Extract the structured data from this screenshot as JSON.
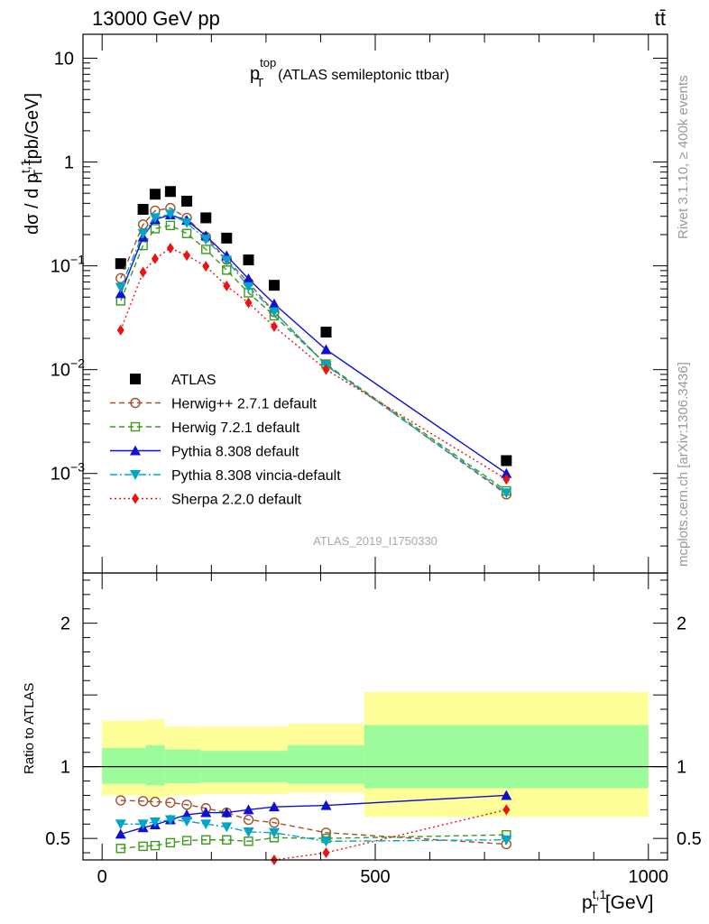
{
  "header": {
    "energy_label": "13000 GeV pp",
    "process_label": "tt̄"
  },
  "side_labels": {
    "rivet": "Rivet 3.1.10, ≥ 400k events",
    "mcplots": "mcplots.cern.ch [arXiv:1306.3436]"
  },
  "plot": {
    "title_main": "p",
    "title_sup": "top",
    "title_sub": "T",
    "title_rest": "(ATLAS semileptonic ttbar)",
    "analysis_id": "ATLAS_2019_I1750330",
    "ylabel_main": "dσ / d p",
    "ylabel_sup": "t,1",
    "ylabel_sub": "T",
    "ylabel_unit": "[pb/GeV]",
    "ratio_ylabel": "Ratio to ATLAS",
    "xlabel_main": "p",
    "xlabel_sup": "t,1",
    "xlabel_sub": "T",
    "xlabel_unit": "[GeV]"
  },
  "chart_data": {
    "type": "scatter",
    "title": "pT top (ATLAS semileptonic ttbar)",
    "xlabel": "pT t,1 [GeV]",
    "ylabel": "dσ / d pT t,1 [pb/GeV]",
    "xlim": [
      -35,
      1035
    ],
    "ylim": [
      0.00011,
      17
    ],
    "yscale": "log",
    "x": [
      34,
      75,
      97,
      125,
      155,
      190,
      228,
      268,
      315,
      410,
      740
    ],
    "y_ticks": [
      {
        "value": 10,
        "base": "10",
        "exp": ""
      },
      {
        "value": 1,
        "base": "1",
        "exp": ""
      },
      {
        "value": 0.1,
        "base": "10",
        "exp": "−1"
      },
      {
        "value": 0.01,
        "base": "10",
        "exp": "−2"
      },
      {
        "value": 0.001,
        "base": "10",
        "exp": "−3"
      }
    ],
    "x_ticks": [
      0,
      500,
      1000
    ],
    "series": [
      {
        "name": "ATLAS",
        "color": "#000000",
        "marker": "square-filled",
        "line": "none",
        "values": [
          0.105,
          0.35,
          0.49,
          0.52,
          0.42,
          0.29,
          0.185,
          0.114,
          0.065,
          0.023,
          0.00133
        ]
      },
      {
        "name": "Herwig++ 2.7.1 default",
        "color": "#a0522d",
        "marker": "circle-open",
        "line": "dashed",
        "values": [
          0.076,
          0.25,
          0.34,
          0.36,
          0.29,
          0.19,
          0.115,
          0.069,
          0.036,
          0.0112,
          0.00063
        ]
      },
      {
        "name": "Herwig 7.2.1 default",
        "color": "#3a9a1a",
        "marker": "square-open",
        "line": "dashed",
        "values": [
          0.046,
          0.157,
          0.228,
          0.245,
          0.205,
          0.144,
          0.091,
          0.055,
          0.033,
          0.0113,
          0.00068
        ]
      },
      {
        "name": "Pythia 8.308 default",
        "color": "#1010d0",
        "marker": "triangle-up",
        "line": "solid",
        "values": [
          0.054,
          0.19,
          0.28,
          0.31,
          0.275,
          0.195,
          0.125,
          0.075,
          0.043,
          0.0156,
          0.001
        ]
      },
      {
        "name": "Pythia 8.308 vincia-default",
        "color": "#00a6c8",
        "marker": "triangle-down",
        "line": "dashdot",
        "values": [
          0.062,
          0.205,
          0.29,
          0.315,
          0.26,
          0.18,
          0.113,
          0.063,
          0.036,
          0.011,
          0.00065
        ]
      },
      {
        "name": "Sherpa 2.2.0 default",
        "color": "#ee1111",
        "marker": "diamond",
        "line": "dotted",
        "values": [
          0.024,
          0.087,
          0.117,
          0.148,
          0.126,
          0.099,
          0.064,
          0.044,
          0.026,
          0.01,
          0.00088
        ]
      }
    ],
    "ratio": {
      "ylabel": "Ratio to ATLAS",
      "ylim": [
        0.35,
        2.35
      ],
      "y_ticks": [
        0.5,
        1,
        2
      ],
      "reference": 1,
      "series": [
        {
          "name": "Herwig++ 2.7.1 default",
          "values": [
            0.765,
            0.76,
            0.755,
            0.75,
            0.735,
            0.71,
            0.68,
            0.63,
            0.61,
            0.54,
            0.46
          ]
        },
        {
          "name": "Herwig 7.2.1 default",
          "values": [
            0.43,
            0.445,
            0.45,
            0.47,
            0.485,
            0.49,
            0.49,
            0.48,
            0.505,
            0.5,
            0.525
          ]
        },
        {
          "name": "Pythia 8.308 default",
          "values": [
            0.53,
            0.575,
            0.595,
            0.63,
            0.665,
            0.68,
            0.68,
            0.7,
            0.72,
            0.73,
            0.8
          ]
        },
        {
          "name": "Pythia 8.308 vincia-default",
          "values": [
            0.6,
            0.6,
            0.615,
            0.63,
            0.62,
            0.6,
            0.58,
            0.545,
            0.54,
            0.48,
            0.49
          ]
        },
        {
          "name": "Sherpa 2.2.0 default",
          "values": [
            null,
            null,
            null,
            null,
            null,
            null,
            null,
            null,
            0.35,
            0.4,
            0.7
          ]
        }
      ],
      "bands": [
        {
          "x_range": [
            0,
            80
          ],
          "stat_lo": 0.88,
          "stat_hi": 1.13,
          "tot_lo": 0.8,
          "tot_hi": 1.32
        },
        {
          "x_range": [
            80,
            115
          ],
          "stat_lo": 0.87,
          "stat_hi": 1.15,
          "tot_lo": 0.78,
          "tot_hi": 1.33
        },
        {
          "x_range": [
            115,
            180
          ],
          "stat_lo": 0.885,
          "stat_hi": 1.12,
          "tot_lo": 0.8,
          "tot_hi": 1.28
        },
        {
          "x_range": [
            180,
            340
          ],
          "stat_lo": 0.89,
          "stat_hi": 1.11,
          "tot_lo": 0.81,
          "tot_hi": 1.28
        },
        {
          "x_range": [
            340,
            480
          ],
          "stat_lo": 0.88,
          "stat_hi": 1.15,
          "tot_lo": 0.82,
          "tot_hi": 1.3
        },
        {
          "x_range": [
            480,
            1000
          ],
          "stat_lo": 0.85,
          "stat_hi": 1.29,
          "tot_lo": 0.65,
          "tot_hi": 1.52
        }
      ],
      "band_colors": {
        "stat": "#9cfc9c",
        "total": "#ffff99"
      }
    }
  }
}
